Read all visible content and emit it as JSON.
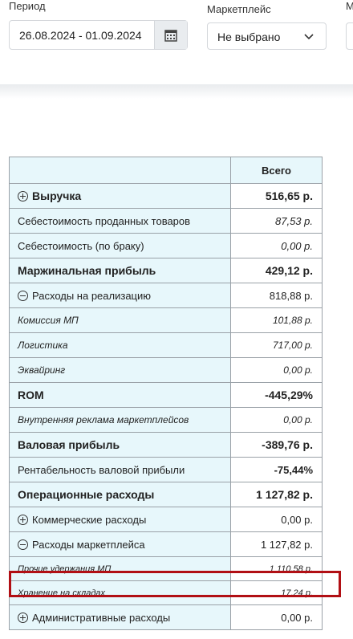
{
  "filters": {
    "period_label": "Период",
    "period_value": "26.08.2024 - 01.09.2024",
    "marketplace_label": "Маркетплейс",
    "marketplace_value": "Не выбрано",
    "third_label": "М"
  },
  "table": {
    "header_total": "Всего",
    "rows": [
      {
        "label": "Выручка",
        "value": "516,65 р."
      },
      {
        "label": "Себестоимость проданных товаров",
        "value": "87,53 р."
      },
      {
        "label": "Себестоимость (по браку)",
        "value": "0,00 р."
      },
      {
        "label": "Маржинальная прибыль",
        "value": "429,12 р."
      },
      {
        "label": "Расходы на реализацию",
        "value": "818,88 р."
      },
      {
        "label": "Комиссия МП",
        "value": "101,88 р."
      },
      {
        "label": "Логистика",
        "value": "717,00 р."
      },
      {
        "label": "Эквайринг",
        "value": "0,00 р."
      },
      {
        "label": "ROM",
        "value": "-445,29%"
      },
      {
        "label": "Внутренняя реклама маркетплейсов",
        "value": "0,00 р."
      },
      {
        "label": "Валовая прибыль",
        "value": "-389,76 р."
      },
      {
        "label": "Рентабельность валовой прибыли",
        "value": "-75,44%"
      },
      {
        "label": "Операционные расходы",
        "value": "1 127,82 р."
      },
      {
        "label": "Коммерческие расходы",
        "value": "0,00 р."
      },
      {
        "label": "Расходы маркетплейса",
        "value": "1 127,82 р."
      },
      {
        "label": "Прочие удержания МП",
        "value": "1 110,58 р."
      },
      {
        "label": "Хранение на складах",
        "value": "17,24 р."
      },
      {
        "label": "Административные расходы",
        "value": "0,00 р."
      }
    ]
  }
}
